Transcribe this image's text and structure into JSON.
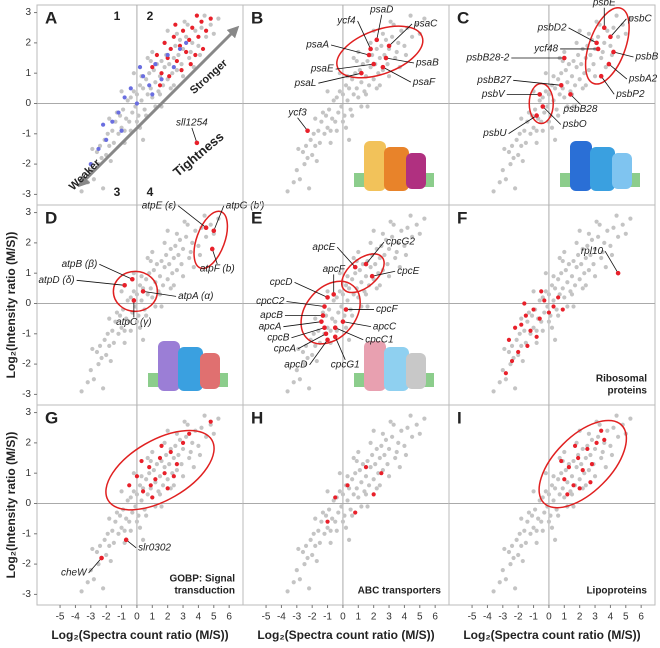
{
  "chart_data": [
    {
      "type": "scatter",
      "label": "A",
      "xlim": [
        -6.5,
        6.9
      ],
      "ylim": [
        -3.35,
        3.25
      ],
      "yticks": [
        -3,
        -2,
        -1,
        0,
        1,
        2,
        3
      ],
      "series": [
        {
          "color": "#c4c4c4",
          "x": [
            -3.2,
            -3.0,
            -2.8,
            -2.6,
            -2.5,
            -2.3,
            -2.1,
            -2.0,
            -1.9,
            -1.8,
            -1.6,
            -1.5,
            -1.4,
            -1.2,
            -1.1,
            -1.0,
            -0.9,
            -0.8,
            -0.7,
            -0.6,
            -0.5,
            -0.4,
            -0.3,
            -0.2,
            -0.1,
            0.0,
            0.1,
            0.2,
            0.3,
            0.4,
            0.5,
            0.6,
            0.7,
            0.8,
            0.9,
            1.0,
            1.1,
            1.2,
            1.3,
            1.4,
            1.5,
            1.6,
            1.7,
            1.8,
            1.9,
            2.0,
            2.1,
            2.2,
            2.3,
            2.4,
            2.5,
            2.6,
            2.7,
            2.8,
            2.9,
            3.0,
            3.2,
            3.4,
            3.6,
            3.8,
            4.0,
            4.2,
            4.5,
            4.8,
            5.0,
            5.3,
            -2.4,
            -1.7,
            -1.3,
            -0.8,
            -0.4,
            0.0,
            0.3,
            0.6,
            0.9,
            1.2,
            1.5,
            1.8,
            2.2,
            2.6,
            3.0,
            3.3,
            3.7,
            4.1,
            -3.6,
            -2.9,
            -1.0,
            0.2,
            1.0,
            2.0,
            -0.2,
            0.7,
            1.6,
            2.4,
            3.1,
            3.5,
            4.4,
            -1.8,
            -2.2,
            0.4
          ],
          "values": [
            -2.6,
            -2.2,
            -2.5,
            -1.6,
            -2.0,
            -1.8,
            -1.2,
            -1.7,
            -1.0,
            -1.4,
            -0.9,
            -1.3,
            -0.6,
            -1.0,
            -0.4,
            -0.8,
            -0.2,
            -0.9,
            -0.5,
            0.1,
            -0.6,
            0.2,
            -0.3,
            0.4,
            -0.1,
            0.3,
            -0.4,
            0.6,
            0.1,
            0.5,
            -0.2,
            0.8,
            0.3,
            1.0,
            0.5,
            0.2,
            1.1,
            0.7,
            1.3,
            0.4,
            0.9,
            1.4,
            0.6,
            1.2,
            1.6,
            0.8,
            1.3,
            1.8,
            1.0,
            1.5,
            1.9,
            1.1,
            1.6,
            2.1,
            1.3,
            1.8,
            2.2,
            1.5,
            2.0,
            2.4,
            1.9,
            2.5,
            2.2,
            2.6,
            2.3,
            2.8,
            -1.4,
            -1.9,
            -0.3,
            -1.3,
            -0.9,
            -0.6,
            0.9,
            -0.4,
            1.4,
            -0.1,
            0.3,
            2.0,
            0.5,
            2.3,
            0.9,
            2.6,
            1.2,
            1.6,
            -2.9,
            -1.5,
            0.4,
            -0.8,
            1.7,
            2.4,
            1.0,
            1.5,
            -0.1,
            0.6,
            2.7,
            1.7,
            2.9,
            -0.5,
            -2.8,
            -1.2
          ]
        },
        {
          "color": "#e8202a",
          "x": [
            1.0,
            1.3,
            1.6,
            1.8,
            2.0,
            2.2,
            2.4,
            2.6,
            2.8,
            3.0,
            3.2,
            3.4,
            3.6,
            3.8,
            4.0,
            4.2,
            4.5,
            4.8,
            2.1,
            2.9,
            3.5,
            1.5,
            4.3,
            3.9,
            2.5
          ],
          "values": [
            1.2,
            1.6,
            1.0,
            2.0,
            1.5,
            1.8,
            2.2,
            1.4,
            1.9,
            2.4,
            1.7,
            2.1,
            2.5,
            1.6,
            2.2,
            2.7,
            2.4,
            2.8,
            0.9,
            1.1,
            1.3,
            0.6,
            1.8,
            2.9,
            2.6
          ]
        },
        {
          "color": "#6a6ee0",
          "x": [
            -3.0,
            -2.5,
            -2.0,
            -1.6,
            -1.2,
            -0.8,
            -0.4,
            0.0,
            0.4,
            0.8,
            1.2,
            1.6,
            2.0,
            2.4,
            2.8,
            -1.0,
            0.2,
            1.0,
            -2.2,
            3.2
          ],
          "values": [
            -2.0,
            -1.5,
            -1.2,
            -0.6,
            -0.3,
            0.2,
            0.5,
            0.0,
            0.9,
            0.6,
            1.3,
            0.8,
            1.6,
            1.2,
            1.8,
            -0.9,
            1.2,
            0.3,
            -0.7,
            2.0
          ]
        }
      ],
      "texts": [
        "1",
        "2",
        "3",
        "4",
        "Stronger",
        "Weaker",
        "Tightness"
      ],
      "annotations": [
        {
          "text": "sll1254",
          "x": 3.9,
          "y": -1.3
        }
      ]
    },
    {
      "type": "scatter",
      "label": "B",
      "xlim": [
        -6.5,
        6.9
      ],
      "ylim": [
        -3.35,
        3.25
      ],
      "series": [],
      "annotations": [
        {
          "text": "psaD",
          "x": 2.2,
          "y": 2.1
        },
        {
          "text": "psaC",
          "x": 3.0,
          "y": 1.9
        },
        {
          "text": "ycf4",
          "x": 1.8,
          "y": 1.8
        },
        {
          "text": "psaA",
          "x": 1.7,
          "y": 1.6
        },
        {
          "text": "psaE",
          "x": 2.0,
          "y": 1.3
        },
        {
          "text": "psaB",
          "x": 2.8,
          "y": 1.5
        },
        {
          "text": "psaL",
          "x": 1.2,
          "y": 1.0
        },
        {
          "text": "psaF",
          "x": 2.6,
          "y": 1.2
        },
        {
          "text": "ycf3",
          "x": -2.3,
          "y": -0.9
        }
      ]
    },
    {
      "type": "scatter",
      "label": "C",
      "xlim": [
        -6.5,
        6.9
      ],
      "ylim": [
        -3.35,
        3.25
      ],
      "series": [],
      "annotations": [
        {
          "text": "psbE",
          "x": 3.6,
          "y": 2.5
        },
        {
          "text": "psbC",
          "x": 4.0,
          "y": 2.2
        },
        {
          "text": "psbD2",
          "x": 3.1,
          "y": 2.0
        },
        {
          "text": "ycf48",
          "x": 3.2,
          "y": 1.8
        },
        {
          "text": "psbB",
          "x": 4.2,
          "y": 1.7
        },
        {
          "text": "psbA2",
          "x": 3.9,
          "y": 1.3
        },
        {
          "text": "psbB28-2",
          "x": 1.0,
          "y": 1.5
        },
        {
          "text": "psbP2",
          "x": 3.4,
          "y": 0.9
        },
        {
          "text": "psbB27",
          "x": 0.8,
          "y": 0.6
        },
        {
          "text": "psbB28",
          "x": 1.4,
          "y": 0.3
        },
        {
          "text": "psbV",
          "x": -0.6,
          "y": 0.3
        },
        {
          "text": "psbO",
          "x": -0.4,
          "y": -0.1
        },
        {
          "text": "psbU",
          "x": -0.8,
          "y": -0.4
        }
      ]
    },
    {
      "type": "scatter",
      "label": "D",
      "xlim": [
        -6.5,
        6.9
      ],
      "ylim": [
        -3.35,
        3.25
      ],
      "yticks": [
        -3,
        -2,
        -1,
        0,
        1,
        2,
        3
      ],
      "series": [],
      "y_label": "Log₂(Intensity ratio (M/S))",
      "annotations": [
        {
          "text": "atpE (ε)",
          "x": 4.5,
          "y": 2.5
        },
        {
          "text": "atpG (b′)",
          "x": 5.0,
          "y": 2.4
        },
        {
          "text": "atpF (b)",
          "x": 4.9,
          "y": 1.8
        },
        {
          "text": "atpB (β)",
          "x": -0.3,
          "y": 0.8
        },
        {
          "text": "atpD (δ)",
          "x": -0.8,
          "y": 0.6
        },
        {
          "text": "atpA (α)",
          "x": 0.4,
          "y": 0.4
        },
        {
          "text": "atpC (γ)",
          "x": -0.2,
          "y": 0.1
        }
      ]
    },
    {
      "type": "scatter",
      "label": "E",
      "xlim": [
        -6.5,
        6.9
      ],
      "ylim": [
        -3.35,
        3.25
      ],
      "series": [],
      "annotations": [
        {
          "text": "apcE",
          "x": 0.8,
          "y": 1.2
        },
        {
          "text": "cpcG2",
          "x": 1.5,
          "y": 1.3
        },
        {
          "text": "cpcE",
          "x": 1.9,
          "y": 0.9
        },
        {
          "text": "apcF",
          "x": -0.6,
          "y": 0.3
        },
        {
          "text": "cpcF",
          "x": 0.2,
          "y": -0.2
        },
        {
          "text": "cpcD",
          "x": -1.0,
          "y": 0.2
        },
        {
          "text": "cpcC2",
          "x": -1.2,
          "y": -0.1
        },
        {
          "text": "apcB",
          "x": -1.3,
          "y": -0.4
        },
        {
          "text": "apcA",
          "x": -1.4,
          "y": -0.6
        },
        {
          "text": "apcC",
          "x": 0.0,
          "y": -0.6
        },
        {
          "text": "cpcB",
          "x": -1.2,
          "y": -0.8
        },
        {
          "text": "cpcC1",
          "x": -0.5,
          "y": -0.8
        },
        {
          "text": "cpcA",
          "x": -1.1,
          "y": -1.0
        },
        {
          "text": "apcD",
          "x": -1.0,
          "y": -1.2
        },
        {
          "text": "cpcG1",
          "x": -0.5,
          "y": -1.1
        }
      ]
    },
    {
      "type": "scatter",
      "label": "F",
      "xlim": [
        -6.5,
        6.9
      ],
      "ylim": [
        -3.35,
        3.25
      ],
      "series": [
        {
          "color": "#e8202a",
          "x": [
            -2.8,
            -2.4,
            -2.0,
            -1.8,
            -1.5,
            -1.2,
            -1.0,
            -0.8,
            -0.6,
            -0.3,
            0.0,
            0.3,
            0.6,
            -1.4,
            -2.2,
            -0.5,
            0.9,
            -1.6,
            -2.6
          ],
          "values": [
            -2.3,
            -1.9,
            -1.6,
            -0.7,
            -0.4,
            -0.9,
            -0.2,
            -1.1,
            -0.5,
            0.1,
            -0.3,
            -0.1,
            0.2,
            -1.4,
            -0.8,
            0.4,
            -0.2,
            0.0,
            -1.2
          ]
        }
      ],
      "subtitle_lines": [
        "Ribosomal",
        "proteins"
      ],
      "annotations": [
        {
          "text": "rpl10",
          "x": 4.5,
          "y": 1.0
        }
      ]
    },
    {
      "type": "scatter",
      "label": "G",
      "xlim": [
        -6.5,
        6.9
      ],
      "ylim": [
        -3.35,
        3.25
      ],
      "yticks": [
        -3,
        -2,
        -1,
        0,
        1,
        2,
        3
      ],
      "xticks": [
        -5,
        -4,
        -3,
        -2,
        -1,
        0,
        1,
        2,
        3,
        4,
        5,
        6
      ],
      "series": [
        {
          "color": "#e8202a",
          "x": [
            -0.5,
            0.0,
            0.4,
            0.8,
            1.2,
            1.5,
            1.8,
            2.2,
            2.6,
            3.0,
            1.0,
            0.3,
            2.0,
            3.4,
            1.6,
            4.8,
            2.4,
            0.9
          ],
          "values": [
            0.6,
            0.9,
            0.4,
            1.2,
            0.8,
            1.5,
            1.0,
            1.7,
            1.3,
            2.0,
            0.2,
            1.4,
            0.5,
            2.3,
            1.9,
            2.7,
            0.9,
            0.6
          ]
        }
      ],
      "y_label": "Log₂(Intensity ratio (M/S))",
      "x_label": "Log₂(Spectra count ratio (M/S))",
      "subtitle_lines": [
        "GOBP: Signal",
        "transduction"
      ],
      "annotations": [
        {
          "text": "cheW",
          "x": -2.3,
          "y": -1.8
        },
        {
          "text": "slr0302",
          "x": -0.7,
          "y": -1.2
        }
      ]
    },
    {
      "type": "scatter",
      "label": "H",
      "xlim": [
        -6.5,
        6.9
      ],
      "ylim": [
        -3.35,
        3.25
      ],
      "xticks": [
        -5,
        -4,
        -3,
        -2,
        -1,
        0,
        1,
        2,
        3,
        4,
        5,
        6
      ],
      "series": [
        {
          "color": "#e8202a",
          "x": [
            1.5,
            2.0,
            -0.5,
            0.8,
            2.5,
            -1.0,
            0.3
          ],
          "values": [
            1.2,
            0.3,
            0.2,
            -0.3,
            1.0,
            -0.6,
            0.6
          ]
        }
      ],
      "x_label": "Log₂(Spectra count ratio (M/S))",
      "subtitle_lines": [
        "ABC transporters"
      ]
    },
    {
      "type": "scatter",
      "label": "I",
      "xlim": [
        -6.5,
        6.9
      ],
      "ylim": [
        -3.35,
        3.25
      ],
      "xticks": [
        -5,
        -4,
        -3,
        -2,
        -1,
        0,
        1,
        2,
        3,
        4,
        5,
        6
      ],
      "series": [
        {
          "color": "#e8202a",
          "x": [
            1.0,
            1.3,
            1.6,
            1.9,
            2.2,
            2.5,
            2.8,
            3.1,
            3.4,
            2.0,
            1.2,
            2.7,
            3.6,
            1.7,
            0.8
          ],
          "values": [
            0.8,
            1.2,
            0.6,
            1.5,
            1.1,
            1.8,
            1.3,
            2.0,
            2.4,
            0.5,
            0.3,
            0.7,
            2.1,
            1.9,
            1.4
          ]
        }
      ],
      "x_label": "Log₂(Spectra count ratio (M/S))",
      "subtitle_lines": [
        "Lipoproteins"
      ]
    }
  ]
}
